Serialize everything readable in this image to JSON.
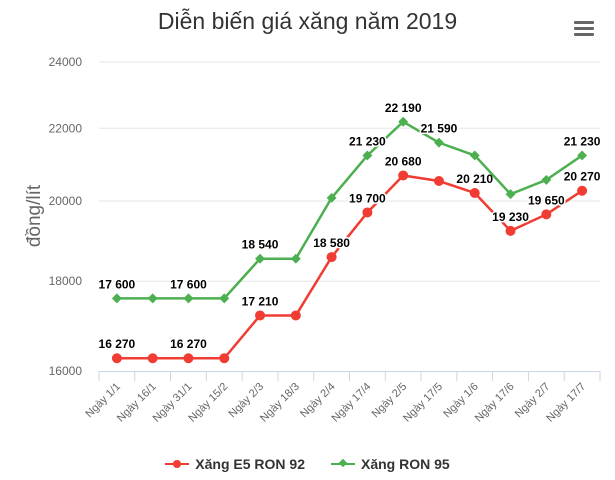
{
  "chart": {
    "title": "Diễn biến giá xăng năm 2019",
    "menu_icon": "hamburger-menu-icon"
  },
  "chart_data": {
    "type": "line",
    "title": "Diễn biến giá xăng năm 2019",
    "xlabel": "",
    "ylabel": "đồng/lít",
    "y_scale": "logarithmic",
    "ylim": [
      16000,
      24000
    ],
    "y_ticks": [
      "24000",
      "22000",
      "20000",
      "18000",
      "16000"
    ],
    "grid": true,
    "legend_position": "bottom",
    "categories": [
      "Ngày 1/1",
      "Ngày 16/1",
      "Ngày 31/1",
      "Ngày 15/2",
      "Ngày 2/3",
      "Ngày 18/3",
      "Ngày 2/4",
      "Ngày 17/4",
      "Ngày 2/5",
      "Ngày 17/5",
      "Ngày 1/6",
      "Ngày 17/6",
      "Ngày 2/7",
      "Ngày 17/7"
    ],
    "series": [
      {
        "name": "Xăng E5 RON 92",
        "color": "#f03c32",
        "marker": "circle",
        "values": [
          16270,
          16270,
          16270,
          16270,
          17210,
          17210,
          18580,
          19700,
          20680,
          20530,
          20210,
          19230,
          19650,
          20270
        ],
        "labels": [
          "16 270",
          "",
          "16 270",
          "",
          "17 210",
          "",
          "18 580",
          "19 700",
          "20 680",
          "",
          "20 210",
          "19 230",
          "19 650",
          "20 270"
        ]
      },
      {
        "name": "Xăng RON 95",
        "color": "#4caf50",
        "marker": "diamond",
        "values": [
          17600,
          17600,
          17600,
          17600,
          18540,
          18540,
          20080,
          21230,
          22190,
          21590,
          21230,
          20180,
          20560,
          21230
        ],
        "labels": [
          "17 600",
          "",
          "17 600",
          "",
          "18 540",
          "",
          "",
          "21 230",
          "22 190",
          "21 590",
          "",
          "",
          "",
          "21 230"
        ]
      }
    ]
  },
  "legend": {
    "items": [
      {
        "label": "Xăng E5 RON 92",
        "color": "#f03c32"
      },
      {
        "label": "Xăng RON 95",
        "color": "#4caf50"
      }
    ]
  }
}
